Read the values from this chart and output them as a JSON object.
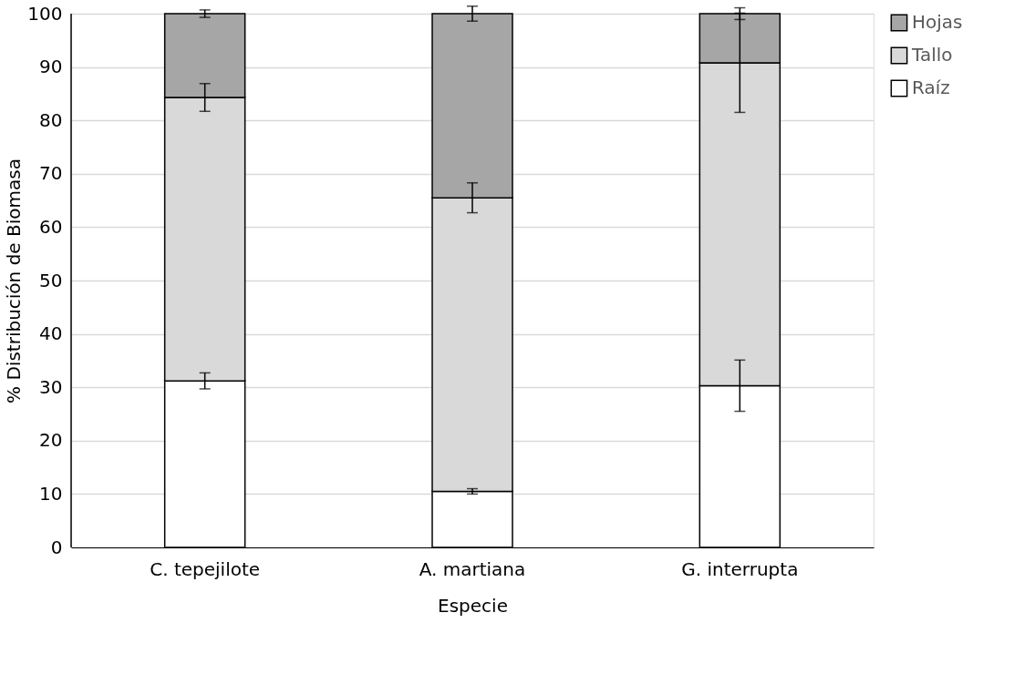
{
  "chart_data": {
    "type": "bar",
    "stacked": true,
    "xlabel": "Especie",
    "ylabel": "% Distribución de Biomasa",
    "categories": [
      "C. tepejilote",
      "A. martiana",
      "G. interrupta"
    ],
    "series": [
      {
        "name": "Raíz",
        "color": "#ffffff",
        "values": [
          31.2,
          10.5,
          30.3
        ],
        "errors": [
          1.5,
          0.5,
          4.8
        ]
      },
      {
        "name": "Tallo",
        "color": "#d9d9d9",
        "values": [
          53.1,
          55.0,
          60.5
        ],
        "errors": [
          2.6,
          2.8,
          9.3
        ]
      },
      {
        "name": "Hojas",
        "color": "#a6a6a6",
        "values": [
          15.7,
          34.5,
          9.2
        ],
        "errors": [
          0.7,
          1.4,
          1.1
        ]
      }
    ],
    "ylim": [
      0,
      100
    ],
    "yticks": [
      0,
      10,
      20,
      30,
      40,
      50,
      60,
      70,
      80,
      90,
      100
    ],
    "grid": "y",
    "legend": "top right"
  }
}
